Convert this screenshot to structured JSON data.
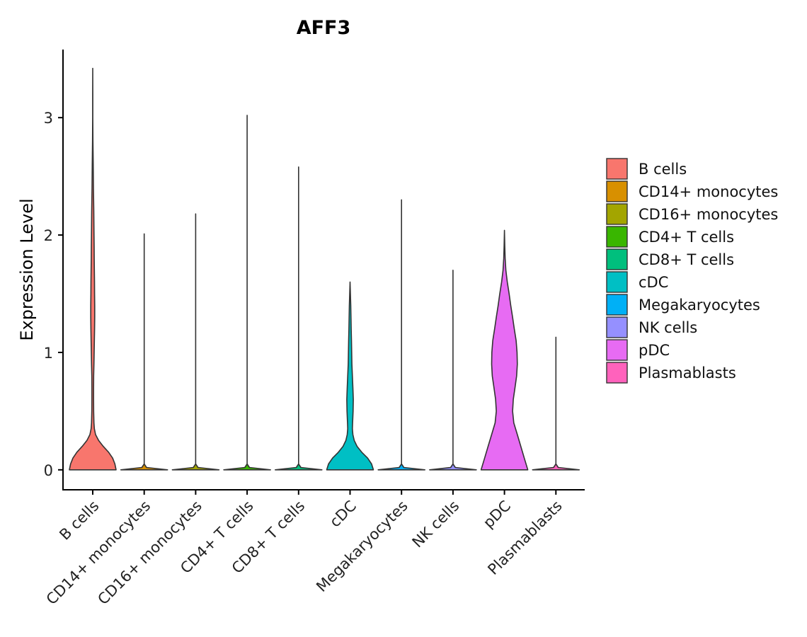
{
  "chart_data": {
    "type": "violin",
    "title": "AFF3",
    "xlabel": "",
    "ylabel": "Expression Level",
    "ylim": [
      -0.17,
      3.58
    ],
    "yticks": [
      0,
      1,
      2,
      3
    ],
    "categories": [
      "B cells",
      "CD14+ monocytes",
      "CD16+ monocytes",
      "CD4+ T cells",
      "CD8+ T cells",
      "cDC",
      "Megakaryocytes",
      "NK cells",
      "pDC",
      "Plasmablasts"
    ],
    "legend_position": "right",
    "legend": [
      "B cells",
      "CD14+ monocytes",
      "CD16+ monocytes",
      "CD4+ T cells",
      "CD8+ T cells",
      "cDC",
      "Megakaryocytes",
      "NK cells",
      "pDC",
      "Plasmablasts"
    ],
    "colors": [
      "#F8766D",
      "#D89000",
      "#A3A500",
      "#39B600",
      "#00BF7D",
      "#00BFC4",
      "#00B0F6",
      "#9590FF",
      "#E76BF3",
      "#FF62BC"
    ],
    "max_values": [
      3.42,
      2.01,
      2.18,
      3.02,
      2.58,
      1.6,
      2.3,
      1.7,
      2.04,
      1.13
    ],
    "density_profiles": [
      [
        [
          0,
          1.0
        ],
        [
          0.05,
          0.95
        ],
        [
          0.1,
          0.85
        ],
        [
          0.15,
          0.68
        ],
        [
          0.2,
          0.45
        ],
        [
          0.25,
          0.25
        ],
        [
          0.3,
          0.12
        ],
        [
          0.35,
          0.07
        ],
        [
          0.4,
          0.05
        ],
        [
          0.5,
          0.04
        ],
        [
          0.6,
          0.035
        ],
        [
          0.7,
          0.035
        ],
        [
          0.8,
          0.04
        ],
        [
          0.9,
          0.05
        ],
        [
          1.0,
          0.06
        ],
        [
          1.1,
          0.07
        ],
        [
          1.2,
          0.08
        ],
        [
          1.3,
          0.085
        ],
        [
          1.4,
          0.085
        ],
        [
          1.5,
          0.08
        ],
        [
          1.6,
          0.075
        ],
        [
          1.7,
          0.07
        ],
        [
          1.8,
          0.065
        ],
        [
          1.9,
          0.06
        ],
        [
          2.0,
          0.055
        ],
        [
          2.2,
          0.045
        ],
        [
          2.4,
          0.03
        ],
        [
          2.6,
          0.02
        ],
        [
          2.8,
          0.01
        ],
        [
          3.0,
          0.004
        ],
        [
          3.2,
          0.002
        ],
        [
          3.42,
          0.0
        ]
      ],
      [
        [
          0,
          1.0
        ],
        [
          0.02,
          0.1
        ],
        [
          0.05,
          0.0
        ],
        [
          2.01,
          0.0
        ]
      ],
      [
        [
          0,
          1.0
        ],
        [
          0.02,
          0.1
        ],
        [
          0.05,
          0.0
        ],
        [
          2.18,
          0.0
        ]
      ],
      [
        [
          0,
          1.0
        ],
        [
          0.02,
          0.1
        ],
        [
          0.05,
          0.0
        ],
        [
          3.02,
          0.0
        ]
      ],
      [
        [
          0,
          1.0
        ],
        [
          0.02,
          0.1
        ],
        [
          0.05,
          0.0
        ],
        [
          2.58,
          0.0
        ]
      ],
      [
        [
          0,
          1.0
        ],
        [
          0.05,
          0.92
        ],
        [
          0.1,
          0.75
        ],
        [
          0.15,
          0.5
        ],
        [
          0.2,
          0.3
        ],
        [
          0.25,
          0.18
        ],
        [
          0.3,
          0.12
        ],
        [
          0.35,
          0.1
        ],
        [
          0.4,
          0.11
        ],
        [
          0.5,
          0.13
        ],
        [
          0.6,
          0.14
        ],
        [
          0.7,
          0.12
        ],
        [
          0.8,
          0.1
        ],
        [
          0.9,
          0.08
        ],
        [
          1.0,
          0.07
        ],
        [
          1.1,
          0.06
        ],
        [
          1.2,
          0.05
        ],
        [
          1.3,
          0.04
        ],
        [
          1.4,
          0.03
        ],
        [
          1.5,
          0.015
        ],
        [
          1.6,
          0.0
        ]
      ],
      [
        [
          0,
          1.0
        ],
        [
          0.02,
          0.1
        ],
        [
          0.05,
          0.0
        ],
        [
          2.3,
          0.0
        ]
      ],
      [
        [
          0,
          1.0
        ],
        [
          0.02,
          0.1
        ],
        [
          0.05,
          0.0
        ],
        [
          1.7,
          0.0
        ]
      ],
      [
        [
          0,
          1.0
        ],
        [
          0.1,
          0.85
        ],
        [
          0.2,
          0.7
        ],
        [
          0.3,
          0.55
        ],
        [
          0.4,
          0.4
        ],
        [
          0.5,
          0.35
        ],
        [
          0.6,
          0.38
        ],
        [
          0.7,
          0.45
        ],
        [
          0.8,
          0.52
        ],
        [
          0.9,
          0.55
        ],
        [
          1.0,
          0.54
        ],
        [
          1.1,
          0.5
        ],
        [
          1.2,
          0.42
        ],
        [
          1.3,
          0.35
        ],
        [
          1.4,
          0.27
        ],
        [
          1.5,
          0.2
        ],
        [
          1.6,
          0.12
        ],
        [
          1.7,
          0.06
        ],
        [
          1.8,
          0.03
        ],
        [
          1.9,
          0.015
        ],
        [
          2.04,
          0.0
        ]
      ],
      [
        [
          0,
          1.0
        ],
        [
          0.02,
          0.1
        ],
        [
          0.05,
          0.0
        ],
        [
          1.13,
          0.0
        ]
      ]
    ]
  }
}
